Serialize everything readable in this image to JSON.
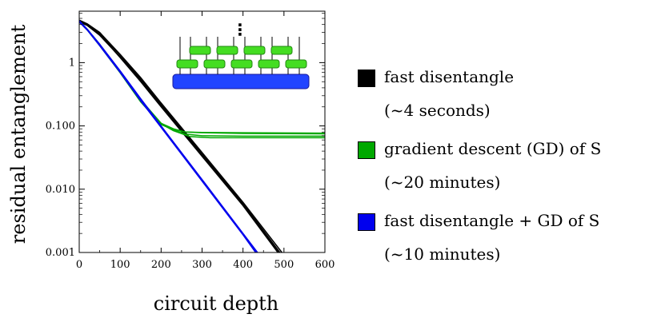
{
  "chart_data": {
    "type": "line",
    "title": "",
    "xlabel": "circuit depth",
    "ylabel": "residual entanglement",
    "xlim": [
      0,
      600
    ],
    "ylim": [
      0.001,
      6.5
    ],
    "yscale": "log",
    "xticks": [
      0,
      100,
      200,
      300,
      400,
      500,
      600
    ],
    "yticks": [
      {
        "value": 0.001,
        "label": "0.001"
      },
      {
        "value": 0.01,
        "label": "0.010"
      },
      {
        "value": 0.1,
        "label": "0.100"
      },
      {
        "value": 1,
        "label": "1"
      }
    ],
    "grid": false,
    "legend_position": "right",
    "series": [
      {
        "name": "fast disentangle",
        "note": "(~4 seconds)",
        "color": "#000000",
        "lines": [
          [
            [
              0,
              4.6
            ],
            [
              20,
              4.0
            ],
            [
              50,
              2.9
            ],
            [
              100,
              1.3
            ],
            [
              150,
              0.55
            ],
            [
              200,
              0.22
            ],
            [
              300,
              0.036
            ],
            [
              400,
              0.0059
            ],
            [
              490,
              0.001
            ]
          ],
          [
            [
              0,
              4.5
            ],
            [
              20,
              3.9
            ],
            [
              50,
              2.8
            ],
            [
              100,
              1.2
            ],
            [
              150,
              0.5
            ],
            [
              200,
              0.2
            ],
            [
              300,
              0.033
            ],
            [
              400,
              0.0055
            ],
            [
              485,
              0.001
            ]
          ],
          [
            [
              0,
              4.4
            ],
            [
              20,
              3.85
            ],
            [
              50,
              2.7
            ],
            [
              100,
              1.22
            ],
            [
              150,
              0.53
            ],
            [
              200,
              0.21
            ],
            [
              300,
              0.034
            ],
            [
              400,
              0.0056
            ],
            [
              487,
              0.001
            ]
          ],
          [
            [
              0,
              4.7
            ],
            [
              20,
              4.1
            ],
            [
              50,
              3.0
            ],
            [
              100,
              1.35
            ],
            [
              150,
              0.58
            ],
            [
              200,
              0.23
            ],
            [
              300,
              0.038
            ],
            [
              400,
              0.0062
            ],
            [
              495,
              0.001
            ]
          ]
        ]
      },
      {
        "name": "gradient descent (GD) of S",
        "note": "(~20 minutes)",
        "color": "#00a800",
        "lines": [
          [
            [
              0,
              4.5
            ],
            [
              20,
              3.3
            ],
            [
              50,
              1.9
            ],
            [
              100,
              0.7
            ],
            [
              150,
              0.25
            ],
            [
              200,
              0.11
            ],
            [
              230,
              0.09
            ],
            [
              260,
              0.08
            ],
            [
              300,
              0.078
            ],
            [
              400,
              0.076
            ],
            [
              600,
              0.075
            ]
          ],
          [
            [
              0,
              4.4
            ],
            [
              20,
              3.25
            ],
            [
              50,
              1.85
            ],
            [
              100,
              0.69
            ],
            [
              150,
              0.24
            ],
            [
              200,
              0.105
            ],
            [
              230,
              0.087
            ],
            [
              260,
              0.08
            ],
            [
              300,
              0.079
            ],
            [
              400,
              0.078
            ],
            [
              600,
              0.077
            ]
          ],
          [
            [
              0,
              4.6
            ],
            [
              20,
              3.35
            ],
            [
              50,
              1.95
            ],
            [
              100,
              0.72
            ],
            [
              150,
              0.26
            ],
            [
              200,
              0.11
            ],
            [
              230,
              0.085
            ],
            [
              260,
              0.074
            ],
            [
              300,
              0.07
            ],
            [
              400,
              0.069
            ],
            [
              600,
              0.069
            ]
          ],
          [
            [
              0,
              4.5
            ],
            [
              20,
              3.3
            ],
            [
              50,
              1.9
            ],
            [
              100,
              0.7
            ],
            [
              150,
              0.25
            ],
            [
              200,
              0.108
            ],
            [
              230,
              0.084
            ],
            [
              270,
              0.068
            ],
            [
              320,
              0.065
            ],
            [
              600,
              0.065
            ]
          ]
        ]
      },
      {
        "name": "fast disentangle + GD of S",
        "note": "(~10 minutes)",
        "color": "#0000ee",
        "lines": [
          [
            [
              0,
              4.5
            ],
            [
              20,
              3.3
            ],
            [
              50,
              1.9
            ],
            [
              100,
              0.72
            ],
            [
              150,
              0.26
            ],
            [
              200,
              0.098
            ],
            [
              300,
              0.0138
            ],
            [
              400,
              0.00195
            ],
            [
              440,
              0.00088
            ]
          ],
          [
            [
              0,
              4.4
            ],
            [
              20,
              3.25
            ],
            [
              50,
              1.85
            ],
            [
              100,
              0.7
            ],
            [
              150,
              0.25
            ],
            [
              200,
              0.095
            ],
            [
              300,
              0.0134
            ],
            [
              400,
              0.0019
            ],
            [
              437,
              0.00088
            ]
          ],
          [
            [
              0,
              4.6
            ],
            [
              20,
              3.35
            ],
            [
              50,
              1.95
            ],
            [
              100,
              0.74
            ],
            [
              150,
              0.27
            ],
            [
              200,
              0.1
            ],
            [
              300,
              0.0142
            ],
            [
              400,
              0.002
            ],
            [
              442,
              0.00088
            ]
          ]
        ]
      }
    ],
    "inset": {
      "description": "brick-wall circuit diagram",
      "gate_color": "#44dd22",
      "base_color": "#2244ff",
      "ellipsis": "⋮"
    }
  }
}
